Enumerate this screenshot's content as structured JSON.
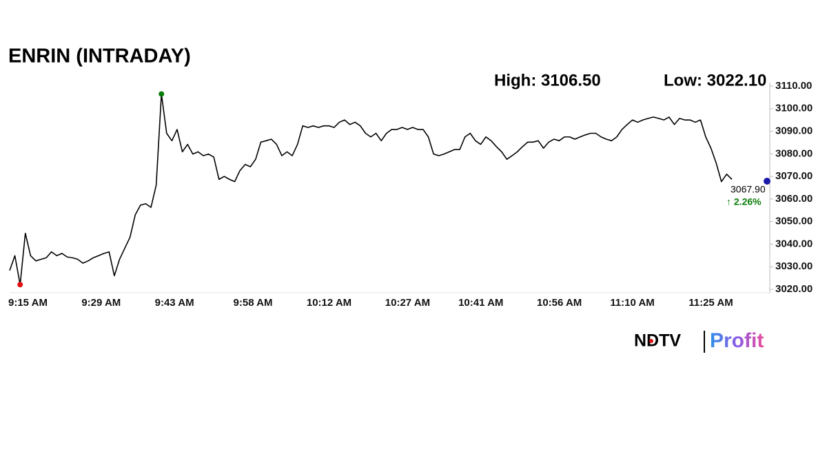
{
  "chart_data": {
    "type": "line",
    "title": "ENRIN (INTRADAY)",
    "annotations": [
      "High: 3106.50",
      "Low: 3022.10"
    ],
    "categories": [
      "9:15 AM",
      null,
      null,
      null,
      null,
      null,
      null,
      null,
      null,
      null,
      null,
      null,
      null,
      null,
      "9:29 AM",
      null,
      null,
      null,
      null,
      null,
      null,
      null,
      null,
      null,
      null,
      null,
      null,
      null,
      "9:43 AM",
      null,
      null,
      null,
      null,
      null,
      null,
      null,
      null,
      null,
      null,
      null,
      null,
      null,
      null,
      "9:58 AM",
      null,
      null,
      null,
      null,
      null,
      null,
      null,
      null,
      null,
      null,
      null,
      null,
      null,
      "10:12 AM",
      null,
      null,
      null,
      null,
      null,
      null,
      null,
      null,
      null,
      null,
      null,
      null,
      null,
      null,
      "10:27 AM",
      null,
      null,
      null,
      null,
      null,
      null,
      null,
      null,
      null,
      null,
      null,
      null,
      null,
      "10:41 AM",
      null,
      null,
      null,
      null,
      null,
      null,
      null,
      null,
      null,
      null,
      null,
      null,
      null,
      null,
      "10:56 AM",
      null,
      null,
      null,
      null,
      null,
      null,
      null,
      null,
      null,
      null,
      null,
      null,
      null,
      "11:10 AM",
      null,
      null,
      null,
      null,
      null,
      null,
      null,
      null,
      null,
      null,
      null,
      null,
      null,
      null,
      "11:25 AM",
      null,
      null,
      null,
      null,
      null,
      null,
      null,
      null
    ],
    "values": [
      3028.3,
      3034.9,
      3022.1,
      3044.8,
      3034.9,
      3032.6,
      3033.3,
      3034.0,
      3036.6,
      3034.9,
      3035.9,
      3034.3,
      3034.0,
      3033.3,
      3031.6,
      3032.6,
      3034.0,
      3034.9,
      3035.9,
      3036.6,
      3026.0,
      3033.3,
      3038.2,
      3043.1,
      3053.0,
      3057.3,
      3057.9,
      3056.3,
      3066.1,
      3106.5,
      3089.1,
      3085.8,
      3090.8,
      3080.9,
      3084.2,
      3079.9,
      3080.9,
      3079.2,
      3079.9,
      3078.6,
      3068.7,
      3070.0,
      3068.7,
      3067.7,
      3072.6,
      3075.3,
      3074.3,
      3077.6,
      3085.2,
      3085.8,
      3086.5,
      3084.2,
      3079.2,
      3080.9,
      3079.2,
      3084.2,
      3092.4,
      3091.7,
      3092.4,
      3091.7,
      3092.4,
      3092.4,
      3091.7,
      3094.0,
      3095.0,
      3093.0,
      3094.0,
      3092.4,
      3089.1,
      3087.5,
      3089.1,
      3085.8,
      3089.1,
      3090.8,
      3090.8,
      3091.7,
      3090.8,
      3091.7,
      3090.8,
      3090.8,
      3087.5,
      3079.9,
      3079.2,
      3079.9,
      3080.9,
      3081.9,
      3081.9,
      3087.5,
      3089.1,
      3085.8,
      3084.2,
      3087.5,
      3085.8,
      3083.2,
      3080.9,
      3077.6,
      3079.2,
      3080.9,
      3083.2,
      3085.2,
      3085.2,
      3085.8,
      3082.5,
      3085.2,
      3086.5,
      3085.8,
      3087.5,
      3087.5,
      3086.5,
      3087.5,
      3088.4,
      3089.1,
      3089.1,
      3087.5,
      3086.5,
      3085.8,
      3087.5,
      3090.8,
      3093.0,
      3095.0,
      3094.0,
      3095.0,
      3095.7,
      3096.3,
      3095.7,
      3095.0,
      3096.3,
      3093.0,
      3095.7,
      3095.0,
      3095.0,
      3094.0,
      3095.0,
      3087.5,
      3082.5,
      3075.9,
      3067.7,
      3071.0,
      3068.7
    ],
    "color": "#000000",
    "marker_colors": {
      "high": "#0a7d0a",
      "low": "#e01010",
      "latest": "#1a1aa8"
    },
    "latest": {
      "value": 3067.9,
      "label": "3067.90",
      "change": "↑ 2.26%",
      "change_color": "#0a7d0a"
    },
    "ylim": [
      3020,
      3110
    ],
    "yticks": [
      {
        "value": 3020,
        "label": "3020.00"
      },
      {
        "value": 3030,
        "label": "3030.00"
      },
      {
        "value": 3040,
        "label": "3040.00"
      },
      {
        "value": 3050,
        "label": "3050.00"
      },
      {
        "value": 3060,
        "label": "3060.00"
      },
      {
        "value": 3070,
        "label": "3070.00"
      },
      {
        "value": 3080,
        "label": "3080.00"
      },
      {
        "value": 3090,
        "label": "3090.00"
      },
      {
        "value": 3100,
        "label": "3100.00"
      },
      {
        "value": 3110,
        "label": "3110.00"
      }
    ],
    "source": "NDTV",
    "brand": "Profit"
  }
}
